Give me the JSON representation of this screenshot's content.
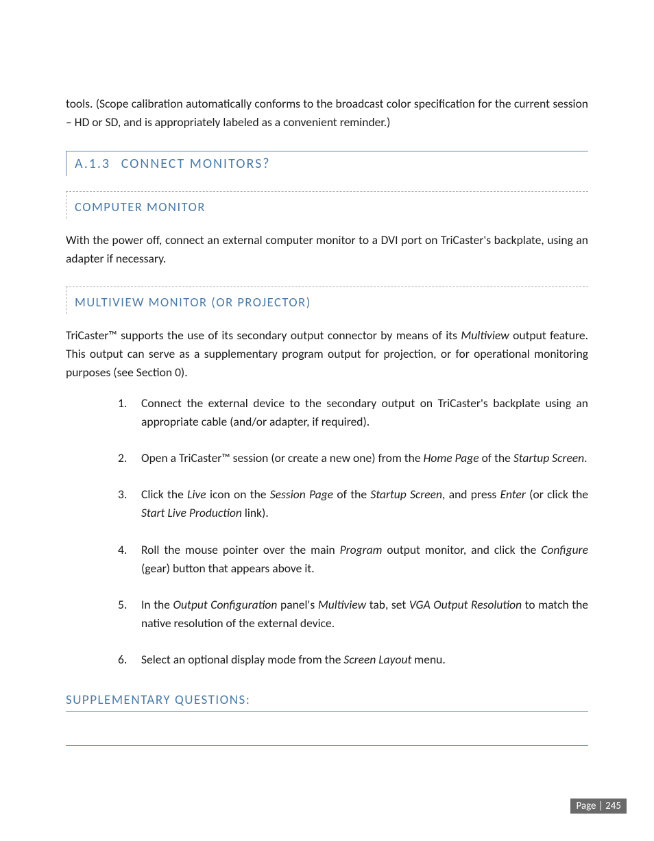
{
  "intro_para": "tools.  (Scope calibration automatically conforms to the broadcast color specification for the current session – HD or SD, and is appropriately labeled as a convenient reminder.)",
  "section": {
    "number": "A.1.3",
    "title": "CONNECT MONITORS?"
  },
  "sub1": {
    "title": "COMPUTER MONITOR",
    "para": "With the power off, connect an external computer monitor to a DVI port on TriCaster's backplate, using an adapter if necessary."
  },
  "sub2": {
    "title": "MULTIVIEW MONITOR (OR PROJECTOR)",
    "para_pre": "TriCaster™ supports the use of its secondary output connector by means of its ",
    "para_em1": "Multiview",
    "para_mid": " output feature.   This output can serve as a supplementary program output for projection, or for operational monitoring purposes (see Section 0).",
    "items": [
      {
        "n": "1.",
        "segs": [
          {
            "t": "Connect the external device to the secondary output on TriCaster's backplate using an appropriate cable (and/or adapter, if required)."
          }
        ]
      },
      {
        "n": "2.",
        "segs": [
          {
            "t": "Open a TriCaster™ session (or create a new one) from the "
          },
          {
            "t": "Home Page",
            "i": true
          },
          {
            "t": " of the "
          },
          {
            "t": "Startup Screen",
            "i": true
          },
          {
            "t": "."
          }
        ]
      },
      {
        "n": "3.",
        "segs": [
          {
            "t": "Click the "
          },
          {
            "t": "Live",
            "i": true
          },
          {
            "t": " icon on the "
          },
          {
            "t": "Session Page",
            "i": true
          },
          {
            "t": " of the "
          },
          {
            "t": "Startup Screen",
            "i": true
          },
          {
            "t": ", and press "
          },
          {
            "t": "Enter",
            "i": true
          },
          {
            "t": " (or click the "
          },
          {
            "t": "Start Live Production",
            "i": true
          },
          {
            "t": " link)."
          }
        ]
      },
      {
        "n": "4.",
        "segs": [
          {
            "t": "Roll the mouse pointer over the main "
          },
          {
            "t": "Program",
            "i": true
          },
          {
            "t": " output monitor, and click the "
          },
          {
            "t": "Configure",
            "i": true
          },
          {
            "t": " (gear) button that appears above it."
          }
        ]
      },
      {
        "n": "5.",
        "segs": [
          {
            "t": "In the "
          },
          {
            "t": "Output Configuration",
            "i": true
          },
          {
            "t": " panel's "
          },
          {
            "t": "Multiview",
            "i": true
          },
          {
            "t": " tab, set "
          },
          {
            "t": "VGA Output Resolution",
            "i": true
          },
          {
            "t": " to match the native resolution of the external device."
          }
        ]
      },
      {
        "n": "6.",
        "segs": [
          {
            "t": "Select an optional display mode from the "
          },
          {
            "t": "Screen Layout",
            "i": true
          },
          {
            "t": " menu."
          }
        ]
      }
    ]
  },
  "supp_heading": "SUPPLEMENTARY QUESTIONS:",
  "page_label": "Page | 245",
  "colors": {
    "heading": "#4a7aa6",
    "rule": "#5b8ab2",
    "footer_bg": "#6a6a6a",
    "text": "#1a1a1a"
  }
}
